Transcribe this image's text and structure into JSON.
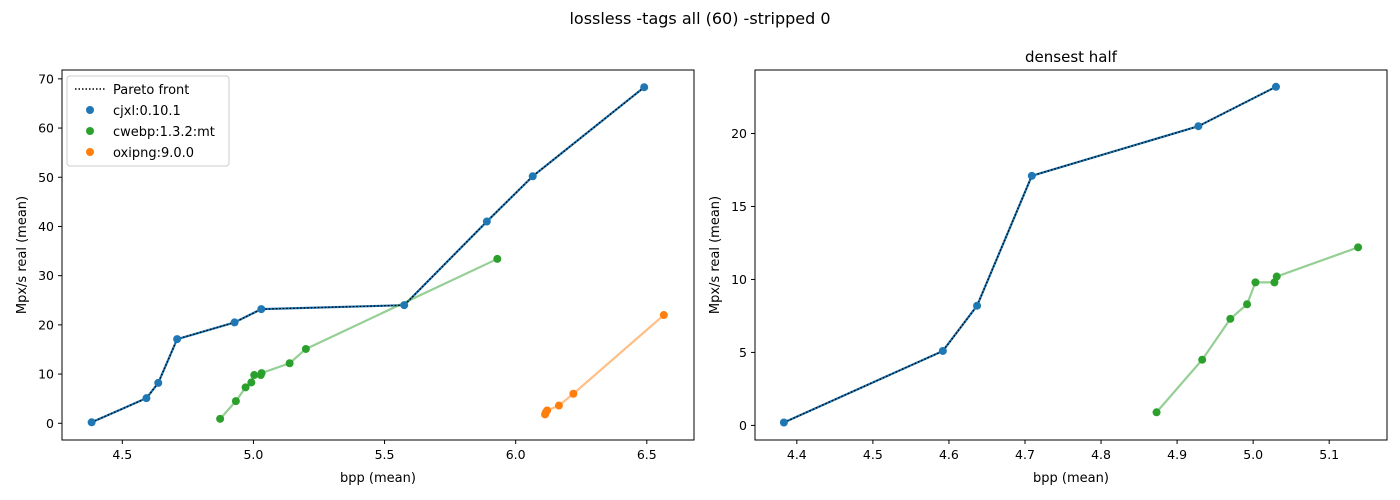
{
  "figure": {
    "suptitle": "lossless -tags all (60) -stripped 0",
    "colors": {
      "cjxl": "#1f77b4",
      "cwebp": "#2ca02c",
      "oxipng": "#ff7f0e",
      "pareto": "#000000"
    }
  },
  "legend": {
    "placement": "upper-left of left panel",
    "entries": [
      "Pareto front",
      "cjxl:0.10.1",
      "cwebp:1.3.2:mt",
      "oxipng:9.0.0"
    ]
  },
  "chart_data": [
    {
      "type": "scatter",
      "title": "",
      "xlabel": "bpp (mean)",
      "ylabel": "Mpx/s real (mean)",
      "xlim": [
        4.27,
        6.68
      ],
      "ylim": [
        -3.4,
        71.8
      ],
      "xticks": [
        "4.5",
        "5.0",
        "5.5",
        "6.0",
        "6.5"
      ],
      "yticks": [
        "0",
        "10",
        "20",
        "30",
        "40",
        "50",
        "60",
        "70"
      ],
      "grid": false,
      "legend": "top-left",
      "series": [
        {
          "name": "cjxl:0.10.1",
          "color": "#1f77b4",
          "connect": true,
          "x": [
            4.383,
            4.592,
            4.637,
            4.709,
            4.928,
            5.03,
            5.575,
            5.89,
            6.065,
            6.49
          ],
          "y": [
            0.2,
            5.1,
            8.2,
            17.1,
            20.5,
            23.2,
            24.0,
            41.0,
            50.2,
            68.3
          ]
        },
        {
          "name": "cwebp:1.3.2:mt",
          "color": "#2ca02c",
          "connect": true,
          "x": [
            4.873,
            4.933,
            4.97,
            4.992,
            5.003,
            5.028,
            5.031,
            5.138,
            5.2,
            5.93
          ],
          "y": [
            0.9,
            4.5,
            7.3,
            8.3,
            9.8,
            9.8,
            10.2,
            12.2,
            15.1,
            33.4
          ]
        },
        {
          "name": "oxipng:9.0.0",
          "color": "#ff7f0e",
          "connect": true,
          "x": [
            6.112,
            6.115,
            6.12,
            6.165,
            6.22,
            6.565
          ],
          "y": [
            1.8,
            2.2,
            2.6,
            3.6,
            6.0,
            22.0
          ]
        },
        {
          "name": "Pareto front",
          "style": "dotted",
          "x": [
            4.383,
            4.592,
            4.637,
            4.709,
            4.928,
            5.03,
            5.575,
            5.89,
            6.065,
            6.49
          ],
          "y": [
            0.2,
            5.1,
            8.2,
            17.1,
            20.5,
            23.2,
            24.0,
            41.0,
            50.2,
            68.3
          ]
        }
      ]
    },
    {
      "type": "scatter",
      "title": "densest half",
      "xlabel": "bpp (mean)",
      "ylabel": "Mpx/s real (mean)",
      "xlim": [
        4.345,
        5.176
      ],
      "ylim": [
        -1.0,
        24.35
      ],
      "xticks": [
        "4.4",
        "4.5",
        "4.6",
        "4.7",
        "4.8",
        "4.9",
        "5.0",
        "5.1"
      ],
      "yticks": [
        "0",
        "5",
        "10",
        "15",
        "20"
      ],
      "grid": false,
      "series": [
        {
          "name": "cjxl:0.10.1",
          "color": "#1f77b4",
          "connect": true,
          "x": [
            4.383,
            4.592,
            4.637,
            4.709,
            4.928,
            5.03
          ],
          "y": [
            0.2,
            5.1,
            8.2,
            17.1,
            20.5,
            23.2
          ]
        },
        {
          "name": "cwebp:1.3.2:mt",
          "color": "#2ca02c",
          "connect": true,
          "x": [
            4.873,
            4.933,
            4.97,
            4.992,
            5.003,
            5.028,
            5.031,
            5.138
          ],
          "y": [
            0.9,
            4.5,
            7.3,
            8.3,
            9.8,
            9.8,
            10.2,
            12.2
          ]
        },
        {
          "name": "Pareto front",
          "style": "dotted",
          "x": [
            4.383,
            4.592,
            4.637,
            4.709,
            4.928,
            5.03
          ],
          "y": [
            0.2,
            5.1,
            8.2,
            17.1,
            20.5,
            23.2
          ]
        }
      ]
    }
  ]
}
